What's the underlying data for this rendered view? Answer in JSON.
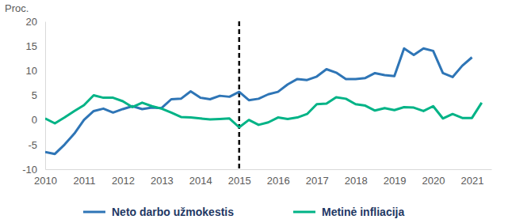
{
  "chart_data": {
    "type": "line",
    "y_label": "Proc.",
    "x": [
      2010,
      2010.25,
      2010.5,
      2010.75,
      2011,
      2011.25,
      2011.5,
      2011.75,
      2012,
      2012.25,
      2012.5,
      2012.75,
      2013,
      2013.25,
      2013.5,
      2013.75,
      2014,
      2014.25,
      2014.5,
      2014.75,
      2015,
      2015.25,
      2015.5,
      2015.75,
      2016,
      2016.25,
      2016.5,
      2016.75,
      2017,
      2017.25,
      2017.5,
      2017.75,
      2018,
      2018.25,
      2018.5,
      2018.75,
      2019,
      2019.25,
      2019.5,
      2019.75,
      2020,
      2020.25,
      2020.5,
      2020.75,
      2021,
      2021.25
    ],
    "series": [
      {
        "name": "Neto darbo užmokestis",
        "color": "#2e75b6",
        "values": [
          -6.5,
          -6.9,
          -5.0,
          -2.8,
          0.0,
          1.8,
          2.3,
          1.5,
          2.2,
          2.8,
          2.2,
          2.5,
          2.4,
          4.2,
          4.3,
          5.8,
          4.5,
          4.2,
          4.9,
          4.7,
          5.7,
          4.0,
          4.3,
          5.2,
          5.7,
          7.2,
          8.3,
          8.1,
          8.8,
          10.3,
          9.6,
          8.3,
          8.3,
          8.5,
          9.5,
          9.1,
          8.9,
          14.5,
          13.2,
          14.5,
          14.0,
          9.5,
          8.7,
          11.0,
          12.7,
          null
        ]
      },
      {
        "name": "Metinė infliacija",
        "color": "#00b386",
        "values": [
          0.3,
          -0.7,
          0.5,
          1.8,
          3.0,
          5.0,
          4.5,
          4.5,
          3.8,
          2.6,
          3.5,
          2.8,
          2.3,
          1.5,
          0.6,
          0.5,
          0.3,
          0.1,
          0.2,
          0.3,
          -1.5,
          0.0,
          -1.0,
          -0.5,
          0.5,
          0.2,
          0.5,
          1.2,
          3.2,
          3.3,
          4.6,
          4.3,
          3.2,
          2.9,
          1.9,
          2.4,
          2.0,
          2.6,
          2.5,
          1.8,
          2.8,
          0.3,
          1.2,
          0.4,
          0.4,
          3.5
        ]
      }
    ],
    "xlim": [
      2010,
      2021.5
    ],
    "xticks": [
      2010,
      2011,
      2012,
      2013,
      2014,
      2015,
      2016,
      2017,
      2018,
      2019,
      2020,
      2021
    ],
    "ylim": [
      -10,
      20
    ],
    "yticks": [
      -10,
      -5,
      0,
      5,
      10,
      15,
      20
    ],
    "grid": false,
    "legend": "bottom",
    "reference_line": {
      "x": 2015,
      "line_style": "dashed",
      "color": "#000000"
    }
  }
}
